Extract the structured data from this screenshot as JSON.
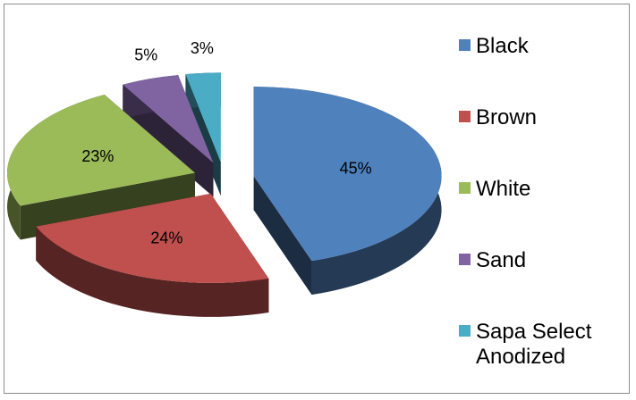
{
  "chart_data": {
    "type": "pie",
    "title": "",
    "categories": [
      "Black",
      "Brown",
      "White",
      "Sand",
      "Sapa Select Anodized"
    ],
    "values": [
      45,
      24,
      23,
      5,
      3
    ],
    "labels": [
      "45%",
      "24%",
      "23%",
      "5%",
      "3%"
    ],
    "colors": [
      "#4f81bd",
      "#c0504d",
      "#9bbb59",
      "#8064a2",
      "#4bacc6"
    ],
    "legend_position": "right",
    "exploded": true,
    "style": "3d"
  },
  "legend": {
    "items": [
      {
        "label": "Black",
        "color": "#4f81bd"
      },
      {
        "label": "Brown",
        "color": "#c0504d"
      },
      {
        "label": "White",
        "color": "#9bbb59"
      },
      {
        "label": "Sand",
        "color": "#8064a2"
      },
      {
        "label": "Sapa Select\nAnodized",
        "color": "#4bacc6"
      }
    ]
  }
}
